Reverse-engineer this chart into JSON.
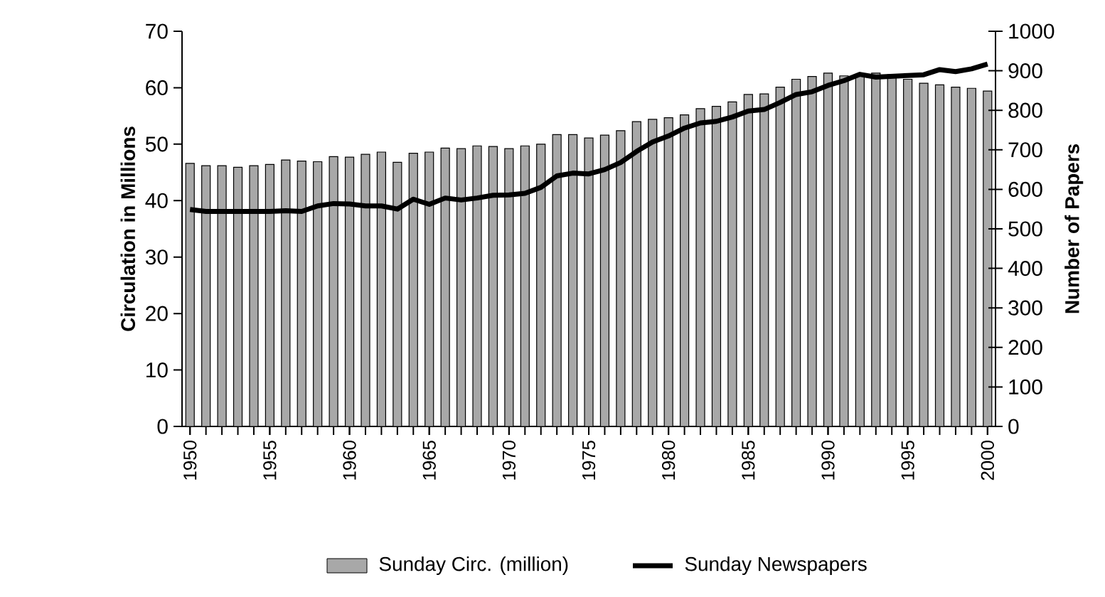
{
  "chart_data": {
    "type": "bar",
    "categories": [
      "1950",
      null,
      null,
      null,
      null,
      "1955",
      null,
      null,
      null,
      null,
      "1960",
      null,
      null,
      null,
      null,
      "1965",
      null,
      null,
      null,
      null,
      "1970",
      null,
      null,
      null,
      null,
      "1975",
      null,
      null,
      null,
      null,
      "1980",
      null,
      null,
      null,
      null,
      "1985",
      null,
      null,
      null,
      null,
      "1990",
      null,
      null,
      null,
      null,
      "1995",
      null,
      null,
      null,
      null,
      "2000"
    ],
    "series": [
      {
        "name": "Sunday Circ. (million)",
        "color": "#a8a8a8",
        "values": [
          46.6,
          46.2,
          46.2,
          45.9,
          46.2,
          46.4,
          47.2,
          47.0,
          46.9,
          47.8,
          47.7,
          48.2,
          48.6,
          46.8,
          48.4,
          48.6,
          49.3,
          49.2,
          49.7,
          49.6,
          49.2,
          49.7,
          50.0,
          51.7,
          51.7,
          51.1,
          51.6,
          52.4,
          54.0,
          54.4,
          54.7,
          55.2,
          56.3,
          56.7,
          57.5,
          58.8,
          58.9,
          60.1,
          61.5,
          62.0,
          62.6,
          62.1,
          62.2,
          62.6,
          62.3,
          61.5,
          60.8,
          60.5,
          60.1,
          59.9,
          59.4
        ]
      },
      {
        "name": "Sunday Newspapers",
        "type": "line",
        "axis": "y2",
        "color": "#000000",
        "values": [
          549,
          544,
          544,
          544,
          544,
          544,
          546,
          544,
          558,
          564,
          563,
          558,
          558,
          550,
          575,
          562,
          578,
          573,
          578,
          585,
          586,
          590,
          605,
          634,
          641,
          639,
          650,
          668,
          696,
          720,
          735,
          755,
          768,
          772,
          783,
          798,
          802,
          820,
          840,
          847,
          863,
          875,
          891,
          884,
          886,
          888,
          890,
          903,
          898,
          905,
          917
        ]
      }
    ],
    "ylabel": "Circulation in Millions",
    "y2label": "Number of Papers",
    "ylim": [
      0,
      70
    ],
    "yticks": [
      0,
      10,
      20,
      30,
      40,
      50,
      60,
      70
    ],
    "y2lim": [
      0,
      1000
    ],
    "y2ticks": [
      0,
      100,
      200,
      300,
      400,
      500,
      600,
      700,
      800,
      900,
      1000
    ],
    "legend": "bottom",
    "grid": false
  }
}
